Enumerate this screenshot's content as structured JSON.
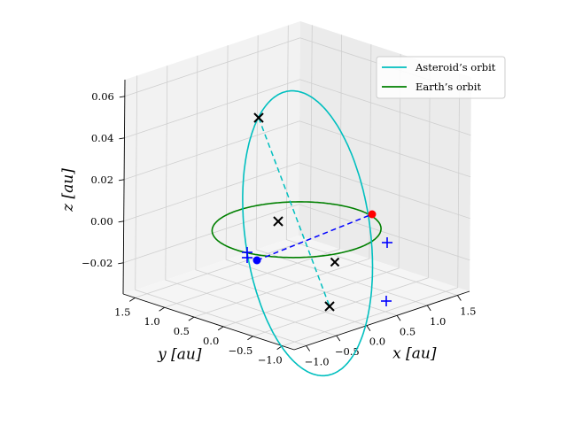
{
  "chart_data": {
    "type": "line",
    "projection": "3d",
    "xlabel": "x [au]",
    "ylabel": "y [au]",
    "zlabel": "z [au]",
    "xlim": [
      -1.2,
      1.7
    ],
    "ylim": [
      -1.2,
      1.7
    ],
    "zlim": [
      -0.035,
      0.068
    ],
    "x_ticks": [
      "−1.0",
      "−0.5",
      "0.0",
      "0.5",
      "1.0",
      "1.5"
    ],
    "y_ticks": [
      "−1.0",
      "−0.5",
      "0.0",
      "0.5",
      "1.0",
      "1.5"
    ],
    "z_ticks": [
      "−0.02",
      "0.00",
      "0.02",
      "0.04",
      "0.06"
    ],
    "grid": true,
    "legend_position": "top-right",
    "legend": [
      "Asteroid’s orbit",
      "Earth’s orbit"
    ],
    "series": [
      {
        "name": "Asteroid’s orbit",
        "kind": "ellipse",
        "color": "#00bfbf",
        "a": 1.1,
        "e": 0.17,
        "focus": [
          0,
          0,
          0
        ],
        "inclination_axis": "y",
        "z_amplitude": 0.064
      },
      {
        "name": "Earth’s orbit",
        "kind": "circle",
        "color": "#008000",
        "radius": 1.0,
        "z": 0
      }
    ],
    "markers": {
      "sun_line": {
        "color": "#0000ff",
        "from": [
          -0.95,
          0.0,
          0.0
        ],
        "to": [
          1.0,
          0.0,
          0.0
        ]
      },
      "asteroid_axis_line": {
        "color": "#00bfbf"
      },
      "red_point": {
        "color": "#ff0000"
      },
      "blue_point": {
        "color": "#0000ff"
      },
      "plus_color": "#0000ff",
      "cross_color": "#000000"
    }
  }
}
